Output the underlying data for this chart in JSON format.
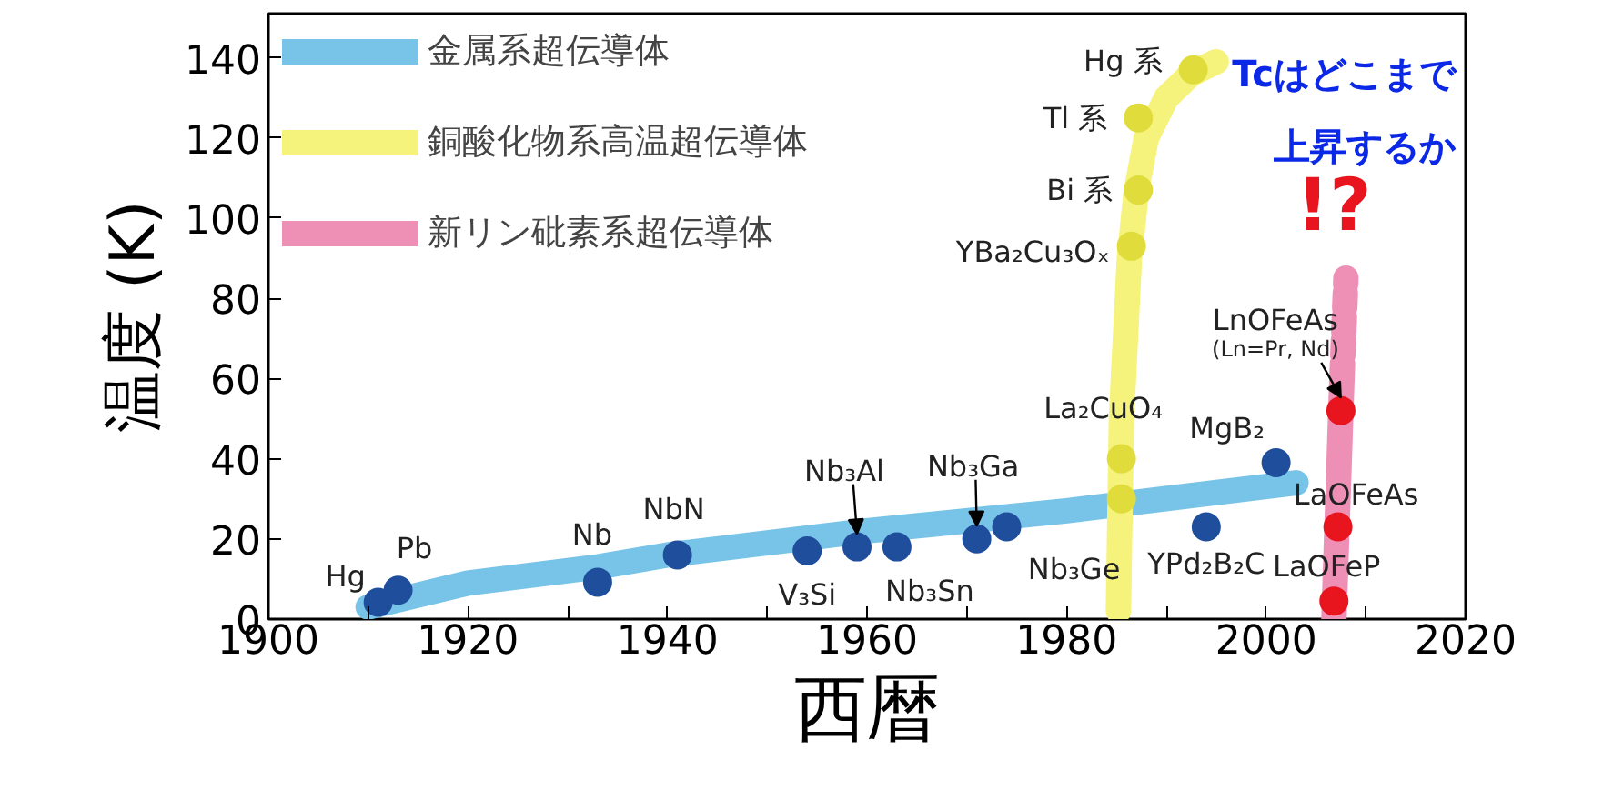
{
  "chart_data": {
    "type": "scatter",
    "xlabel": "西暦",
    "ylabel": "温度 (K)",
    "xlim": [
      1900,
      2020
    ],
    "ylim": [
      0,
      151
    ],
    "xticks": [
      1900,
      {
        "value": 1910,
        "label": null
      },
      1920,
      {
        "value": 1930,
        "label": null
      },
      1940,
      {
        "value": 1950,
        "label": null
      },
      1960,
      {
        "value": 1970,
        "label": null
      },
      1980,
      {
        "value": 1990,
        "label": null
      },
      2000,
      {
        "value": 2010,
        "label": null
      },
      2020
    ],
    "yticks": [
      0,
      20,
      40,
      60,
      80,
      100,
      120,
      140
    ],
    "grid": false,
    "legend": "top left",
    "series": [
      {
        "type": "line",
        "name": "金属系超伝導体",
        "color": "#78c4e8",
        "x": [
          1910,
          1920,
          1933,
          1940,
          1960,
          1980,
          2003
        ],
        "values": [
          3,
          9,
          13,
          16,
          22,
          27,
          34
        ]
      },
      {
        "type": "line",
        "name": "銅酸化物系高温超伝導体",
        "color": "#f6f37c",
        "x": [
          1985.2,
          1985.5,
          1986.3,
          1987,
          1988,
          1990,
          1992.5,
          1995
        ],
        "values": [
          2,
          50,
          90,
          107,
          120,
          130,
          136,
          139
        ]
      },
      {
        "type": "line",
        "name": "新リン砒素系超伝導体",
        "color": "#ee8fb6",
        "x": [
          2006.8,
          2007.6
        ],
        "values": [
          0,
          60
        ]
      },
      {
        "type": "line",
        "color": "#ee8fb6",
        "line_style": "dashed",
        "x": [
          2007.6,
          2008
        ],
        "values": [
          60,
          85
        ]
      },
      {
        "marker": "circle",
        "color": "#1f4e9c",
        "x": [
          1911,
          1913,
          1933,
          1941,
          1954,
          1959,
          1963,
          1971,
          1974,
          1994,
          2001
        ],
        "values": [
          4.2,
          7.2,
          9.2,
          16,
          17,
          18,
          18,
          20,
          23,
          23,
          39
        ]
      },
      {
        "marker": "circle",
        "color": "#e0dc3c",
        "x": [
          1985.5,
          1985.5,
          1986.5,
          1987.2,
          1987.2,
          1992.7
        ],
        "values": [
          30,
          40,
          93,
          107,
          125,
          137
        ]
      },
      {
        "marker": "circle",
        "color": "#e8141e",
        "x": [
          2007.5,
          2007.2,
          2006.8
        ],
        "values": [
          52,
          23,
          4.5
        ]
      }
    ],
    "annotations": [
      {
        "text": "Hg",
        "x": 1911,
        "y": 4.2
      },
      {
        "text": "Pb",
        "x": 1913,
        "y": 7.2
      },
      {
        "text": "Nb",
        "x": 1933,
        "y": 9.2
      },
      {
        "text": "NbN",
        "x": 1941,
        "y": 16
      },
      {
        "text": "V₃Si",
        "x": 1954,
        "y": 17
      },
      {
        "text": "Nb₃Al",
        "x": 1959,
        "y": 18
      },
      {
        "text": "Nb₃Sn",
        "x": 1963,
        "y": 18
      },
      {
        "text": "Nb₃Ga",
        "x": 1971,
        "y": 20
      },
      {
        "text": "Nb₃Ge",
        "x": 1974,
        "y": 23
      },
      {
        "text": "YPd₂B₂C",
        "x": 1994,
        "y": 23
      },
      {
        "text": "MgB₂",
        "x": 2001,
        "y": 39
      },
      {
        "text": "La₂CuO₄",
        "x": 1985.5,
        "y": 40
      },
      {
        "text": "YBa₂Cu₃Oₓ",
        "x": 1986.5,
        "y": 93
      },
      {
        "text": "Bi 系",
        "x": 1987.2,
        "y": 107
      },
      {
        "text": "Tl 系",
        "x": 1987.2,
        "y": 125
      },
      {
        "text": "Hg 系",
        "x": 1992.7,
        "y": 137
      },
      {
        "text": "LnOFeAs",
        "x": 2007.5,
        "y": 52
      },
      {
        "text": "(Ln=Pr, Nd)",
        "x": 2007.5,
        "y": 52
      },
      {
        "text": "LaOFeAs",
        "x": 2007.2,
        "y": 23
      },
      {
        "text": "LaOFeP",
        "x": 2006.8,
        "y": 4.5
      },
      "Tcはどこまで",
      "上昇するか",
      "!?"
    ]
  }
}
